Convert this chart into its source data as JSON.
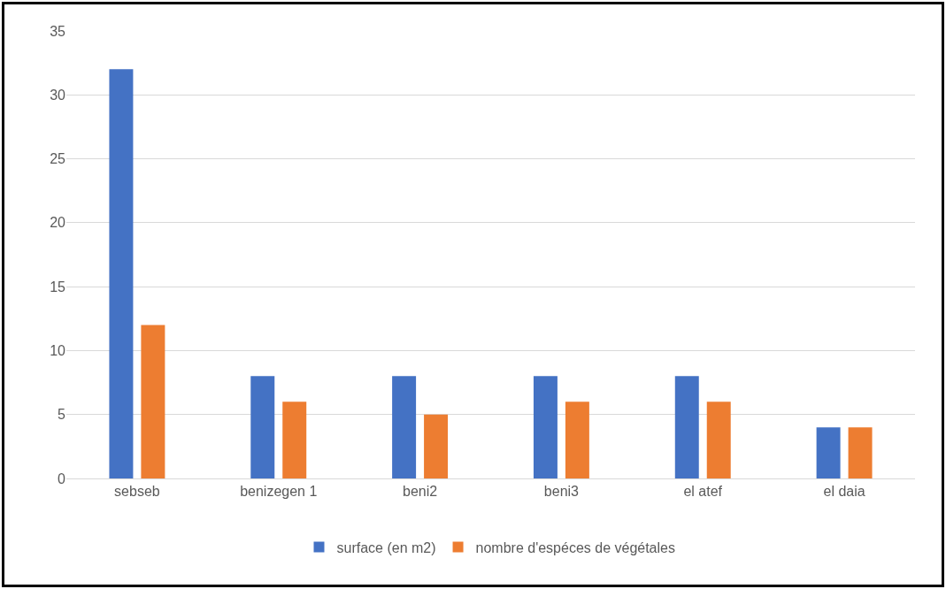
{
  "chart_data": {
    "type": "bar",
    "categories": [
      "sebseb",
      "benizegen 1",
      "beni2",
      "beni3",
      "el atef",
      "el daia"
    ],
    "series": [
      {
        "name": "surface (en m2)",
        "color": "#4472c4",
        "values": [
          32,
          8,
          8,
          8,
          8,
          4
        ]
      },
      {
        "name": "nombre d'espéces de végétales",
        "color": "#ed7d31",
        "values": [
          12,
          6,
          5,
          6,
          6,
          4
        ]
      }
    ],
    "ylim": [
      0,
      35
    ],
    "yticks": [
      0,
      5,
      10,
      15,
      20,
      25,
      30,
      35
    ],
    "grid": "y",
    "legend": "bottom"
  }
}
